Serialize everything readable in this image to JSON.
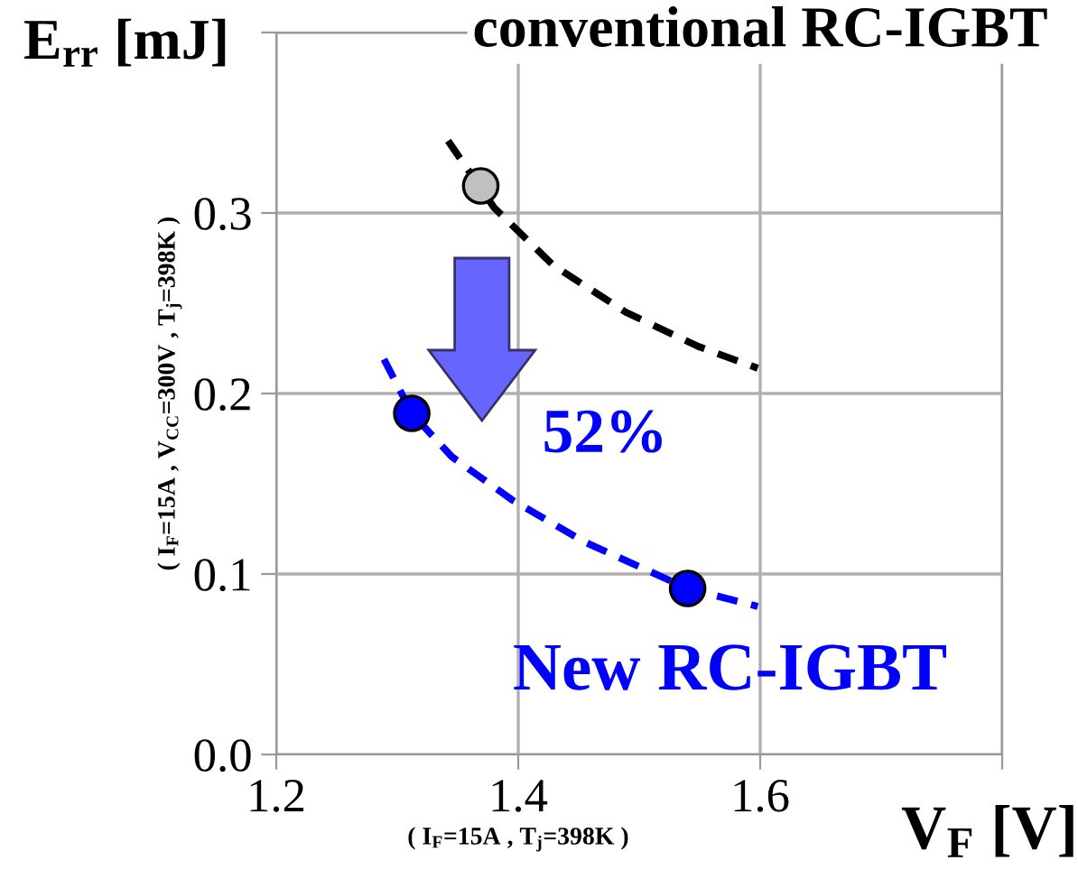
{
  "chart_data": {
    "type": "line",
    "xlabel": "V$_{F}$ [V]",
    "ylabel": "E$_{rr}$ [mJ]",
    "xlim": [
      1.2,
      1.8
    ],
    "xticks": [
      1.2,
      1.4,
      1.6,
      {
        "value": 1.8,
        "label": null
      }
    ],
    "ylim": [
      0.0,
      0.4
    ],
    "yticks": [
      {
        "value": 0.0,
        "label": "0.0"
      },
      0.1,
      0.2,
      0.3,
      {
        "value": 0.4,
        "label": null
      }
    ],
    "grid": true,
    "series": [
      {
        "name": "conventional RC-IGBT",
        "color": "#000000",
        "line_style": "dashed",
        "marker": "none",
        "x": [
          1.342,
          1.38,
          1.429,
          1.489,
          1.549,
          1.598
        ],
        "values": [
          0.34,
          0.303,
          0.271,
          0.245,
          0.226,
          0.214
        ]
      },
      {
        "type": "scatter",
        "color": "#c0c0c0",
        "marker": "circle",
        "x": [
          1.369
        ],
        "values": [
          0.315
        ]
      },
      {
        "name": "New RC-IGBT",
        "color": "#0000ff",
        "line_style": "dashed",
        "marker": "none",
        "x": [
          1.289,
          1.312,
          1.345,
          1.395,
          1.454,
          1.54,
          1.598
        ],
        "values": [
          0.219,
          0.189,
          0.165,
          0.141,
          0.118,
          0.092,
          0.082
        ]
      },
      {
        "type": "scatter",
        "color": "#0000ff",
        "marker": "circle",
        "x": [
          1.312,
          1.54
        ],
        "values": [
          0.189,
          0.092
        ]
      }
    ],
    "annotations": [
      "52%",
      "( I$_{F}$=15A , V$_{CC}$=300V , T$_{j}$=398K )",
      "( I$_{F}$=15A , T$_{j}$=398K )"
    ]
  }
}
